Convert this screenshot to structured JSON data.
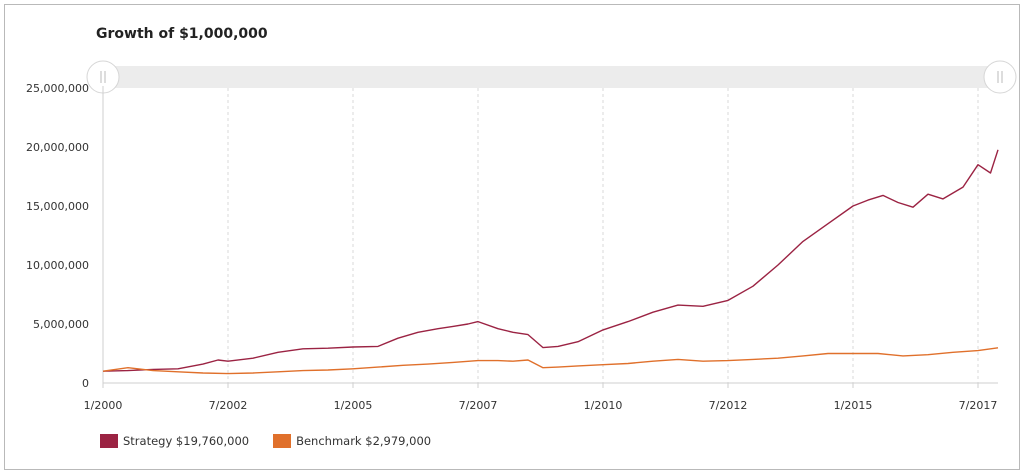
{
  "chart_data": {
    "type": "line",
    "title": "Growth of $1,000,000",
    "xlabel": "",
    "ylabel": "",
    "ylim": [
      0,
      25000000
    ],
    "y_ticks": [
      "0",
      "5,000,000",
      "10,000,000",
      "15,000,000",
      "20,000,000",
      "25,000,000"
    ],
    "y_tick_values": [
      0,
      5000000,
      10000000,
      15000000,
      20000000,
      25000000
    ],
    "x_ticks": [
      "1/2000",
      "7/2002",
      "1/2005",
      "7/2007",
      "1/2010",
      "7/2012",
      "1/2015",
      "7/2017"
    ],
    "x_tick_values": [
      2000.0,
      2002.5,
      2005.0,
      2007.5,
      2010.0,
      2012.5,
      2015.0,
      2017.5
    ],
    "xlim": [
      2000.0,
      2017.9
    ],
    "grid": "vertical dashed",
    "legend_position": "bottom-left",
    "series": [
      {
        "name": "Strategy $19,760,000",
        "color": "#9b2343",
        "x": [
          2000.0,
          2000.5,
          2001.0,
          2001.5,
          2002.0,
          2002.3,
          2002.5,
          2003.0,
          2003.5,
          2004.0,
          2004.5,
          2005.0,
          2005.5,
          2005.9,
          2006.3,
          2006.7,
          2007.0,
          2007.3,
          2007.5,
          2007.9,
          2008.2,
          2008.5,
          2008.8,
          2009.1,
          2009.5,
          2010.0,
          2010.5,
          2011.0,
          2011.5,
          2012.0,
          2012.5,
          2013.0,
          2013.5,
          2014.0,
          2014.5,
          2015.0,
          2015.3,
          2015.6,
          2015.9,
          2016.2,
          2016.5,
          2016.8,
          2017.2,
          2017.5,
          2017.75,
          2017.9
        ],
        "values": [
          1000000,
          1050000,
          1150000,
          1200000,
          1600000,
          1950000,
          1850000,
          2100000,
          2600000,
          2900000,
          2950000,
          3050000,
          3100000,
          3800000,
          4300000,
          4600000,
          4800000,
          5000000,
          5200000,
          4600000,
          4300000,
          4100000,
          3000000,
          3100000,
          3500000,
          4500000,
          5200000,
          6000000,
          6600000,
          6500000,
          7000000,
          8200000,
          10000000,
          12000000,
          13500000,
          15000000,
          15500000,
          15900000,
          15300000,
          14900000,
          16000000,
          15600000,
          16600000,
          18500000,
          17800000,
          19760000
        ]
      },
      {
        "name": "Benchmark $2,979,000",
        "color": "#e0702b",
        "x": [
          2000.0,
          2000.5,
          2001.0,
          2001.5,
          2002.0,
          2002.5,
          2003.0,
          2003.5,
          2004.0,
          2004.5,
          2005.0,
          2005.5,
          2006.0,
          2006.5,
          2007.0,
          2007.5,
          2007.9,
          2008.2,
          2008.5,
          2008.8,
          2009.1,
          2009.5,
          2010.0,
          2010.5,
          2011.0,
          2011.5,
          2012.0,
          2012.5,
          2013.0,
          2013.5,
          2014.0,
          2014.5,
          2015.0,
          2015.5,
          2016.0,
          2016.5,
          2017.0,
          2017.5,
          2017.9
        ],
        "values": [
          1000000,
          1300000,
          1050000,
          950000,
          850000,
          800000,
          850000,
          950000,
          1050000,
          1100000,
          1200000,
          1350000,
          1500000,
          1600000,
          1750000,
          1900000,
          1900000,
          1850000,
          1950000,
          1300000,
          1350000,
          1450000,
          1550000,
          1650000,
          1850000,
          2000000,
          1850000,
          1900000,
          2000000,
          2100000,
          2300000,
          2500000,
          2500000,
          2500000,
          2300000,
          2400000,
          2600000,
          2750000,
          2979000
        ]
      }
    ]
  }
}
